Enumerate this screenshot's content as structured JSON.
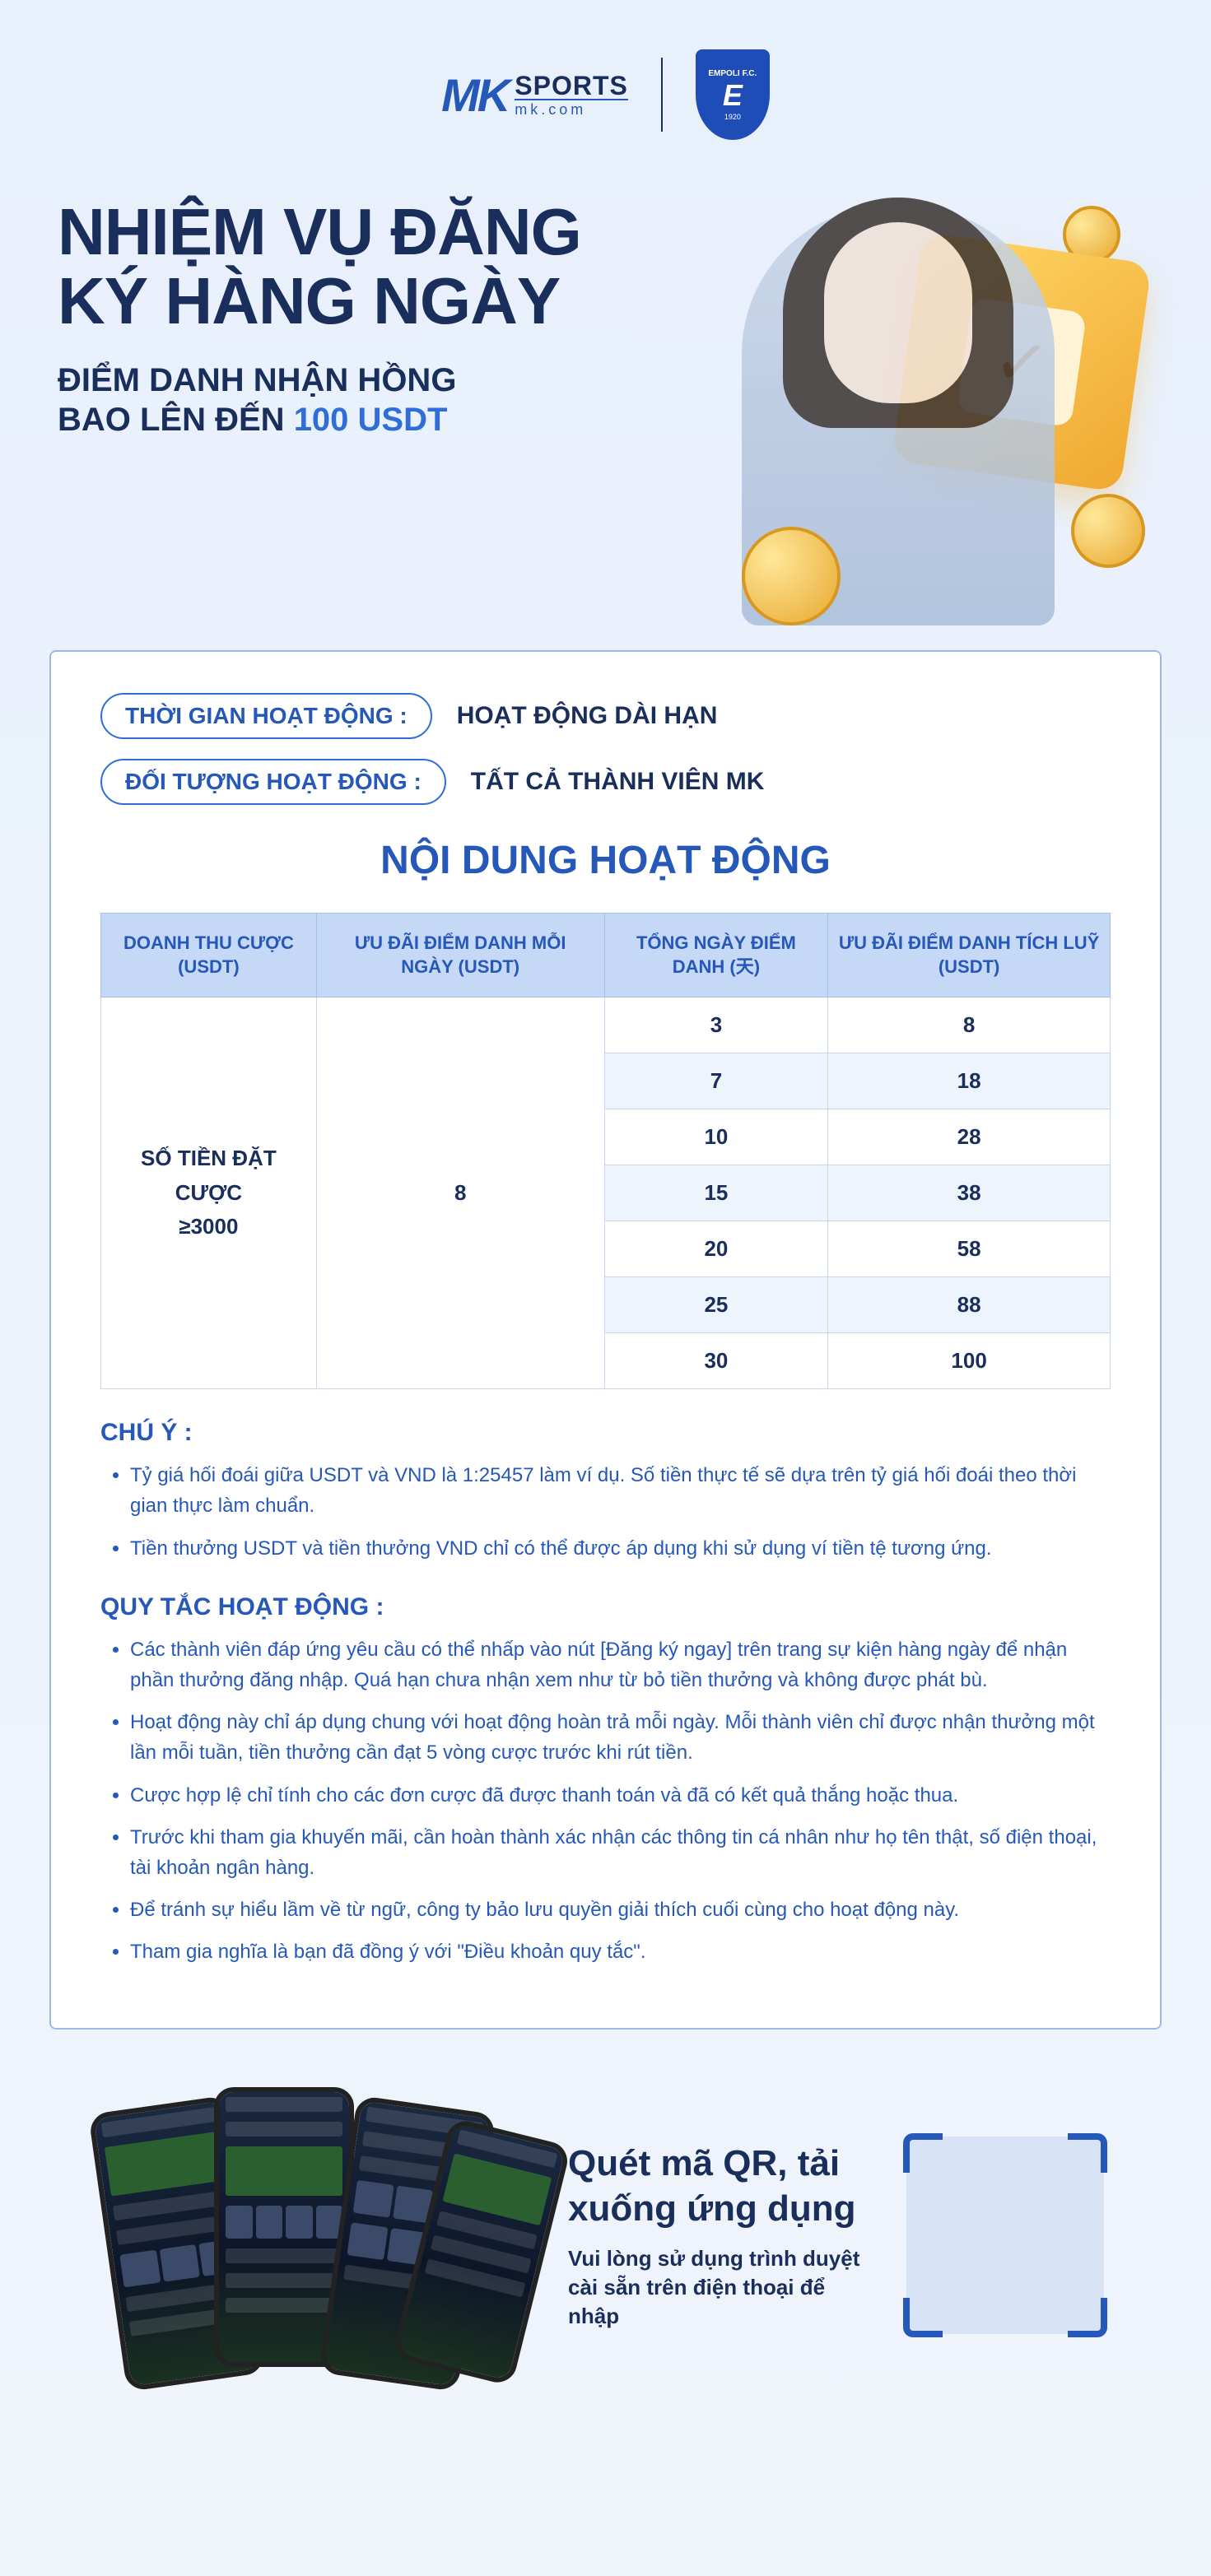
{
  "header": {
    "logo_mk": "MK",
    "logo_sports": "SPORTS",
    "logo_domain": "mk.com",
    "badge_top": "EMPOLI F.C.",
    "badge_mid": "E",
    "badge_year": "1920"
  },
  "hero": {
    "title_line1": "NHIỆM VỤ ĐĂNG",
    "title_line2": "KÝ HÀNG NGÀY",
    "sub_line1": "ĐIỂM DANH NHẬN HỒNG",
    "sub_line2_a": "BAO LÊN ĐẾN ",
    "sub_line2_accent": "100 USDT"
  },
  "meta": {
    "time_label": "THỜI GIAN HOẠT ĐỘNG :",
    "time_value": "HOẠT ĐỘNG DÀI HẠN",
    "target_label": "ĐỐI TƯỢNG HOẠT ĐỘNG :",
    "target_value": "TẤT CẢ THÀNH VIÊN MK"
  },
  "section_title": "NỘI DUNG HOẠT ĐỘNG",
  "table": {
    "columns": [
      "DOANH THU CƯỢC (USDT)",
      "ƯU ĐÃI ĐIỂM DANH MỖI NGÀY (USDT)",
      "TỔNG NGÀY ĐIỂM DANH (天)",
      "ƯU ĐÃI ĐIỂM DANH TÍCH LUỸ (USDT)"
    ],
    "merged_col1": "SỐ TIỀN ĐẶT CƯỢC ≥3000",
    "merged_col2": "8",
    "rows": [
      {
        "days": "3",
        "bonus": "8"
      },
      {
        "days": "7",
        "bonus": "18"
      },
      {
        "days": "10",
        "bonus": "28"
      },
      {
        "days": "15",
        "bonus": "38"
      },
      {
        "days": "20",
        "bonus": "58"
      },
      {
        "days": "25",
        "bonus": "88"
      },
      {
        "days": "30",
        "bonus": "100"
      }
    ],
    "header_bg": "#c5d8f5",
    "header_color": "#2558b8",
    "row_alt_bg": "#eef4fc",
    "border_color": "#c8d6ec"
  },
  "notes": {
    "heading": "CHÚ Ý :",
    "items": [
      "Tỷ giá hối đoái giữa USDT và VND là 1:25457 làm ví dụ. Số tiền thực tế sẽ dựa trên tỷ giá hối đoái theo thời gian thực làm chuẩn.",
      "Tiền thưởng USDT và tiền thưởng VND chỉ có thể được áp dụng khi sử dụng ví tiền tệ tương ứng."
    ]
  },
  "rules": {
    "heading": "QUY TẮC HOẠT ĐỘNG :",
    "items": [
      "Các thành viên đáp ứng yêu cầu có thể nhấp vào nút [Đăng ký ngay] trên trang sự kiện hàng ngày để nhận phần thưởng đăng nhập. Quá hạn chưa nhận xem như từ bỏ tiền thưởng và không được phát bù.",
      "Hoạt động này chỉ áp dụng chung với hoạt động hoàn trả mỗi ngày. Mỗi thành viên chỉ được nhận thưởng một lần mỗi tuần, tiền thưởng cần đạt 5 vòng cược trước khi rút tiền.",
      "Cược hợp lệ chỉ tính cho các đơn cược đã được thanh toán và đã có kết quả thắng hoặc thua.",
      "Trước khi tham gia khuyến mãi, cần hoàn thành xác nhận các thông tin cá nhân như họ tên thật, số điện thoại, tài khoản ngân hàng.",
      "Để tránh sự hiểu lầm về từ ngữ, công ty bảo lưu quyền giải thích cuối cùng cho hoạt động này.",
      "Tham gia nghĩa là bạn đã đồng ý với \"Điều khoản quy tắc\"."
    ]
  },
  "qr": {
    "title": "Quét mã QR, tải xuống ứng dụng",
    "sub": "Vui lòng sử dụng trình duyệt cài sẵn trên điện thoại để nhập"
  },
  "colors": {
    "primary": "#2558b8",
    "dark": "#1a2e5c",
    "accent": "#2f6dd9",
    "gold": "#f0a830",
    "page_bg_top": "#e8f0fc",
    "page_bg_bottom": "#f0f5fc",
    "card_border": "#9db8e8"
  }
}
